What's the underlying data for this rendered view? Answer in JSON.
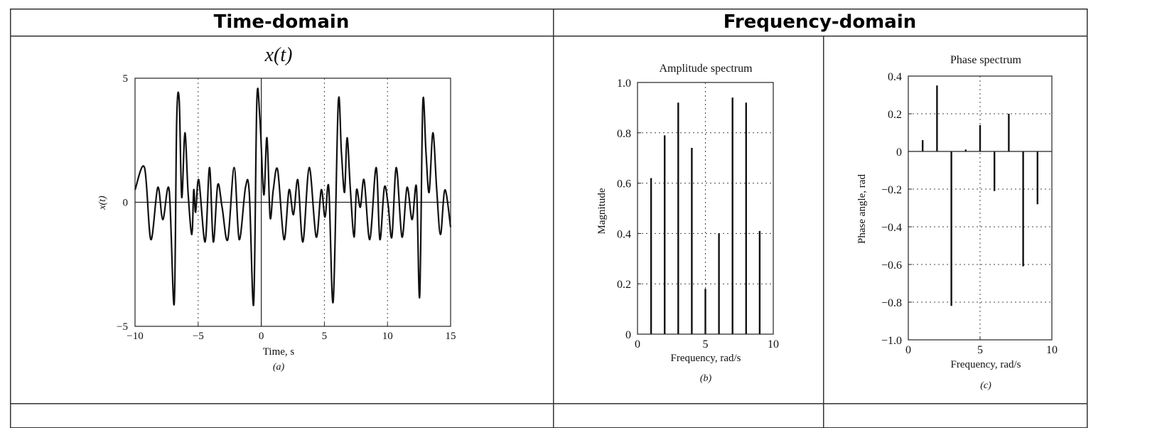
{
  "table": {
    "col_time_header": "Time-domain",
    "col_freq_header": "Frequency-domain"
  },
  "chart_data": [
    {
      "type": "line",
      "title": "x(t)",
      "xlabel": "Time, s",
      "ylabel": "x(t)",
      "caption": "(a)",
      "xlim": [
        -10,
        15
      ],
      "ylim": [
        -5,
        5
      ],
      "xticks": [
        -10,
        -5,
        0,
        5,
        10,
        15
      ],
      "xtick_labels": [
        "−10",
        "−5",
        "0",
        "5",
        "10",
        "15"
      ],
      "yticks": [
        -5,
        0,
        5
      ],
      "ytick_labels": [
        "−5",
        "0",
        "5"
      ],
      "grid": "dotted vertical lines at x = −5, 5, 10",
      "x": [
        -10,
        -9.25,
        -8.75,
        -8.2,
        -7.8,
        -7.3,
        -6.9,
        -6.7,
        -6.5,
        -6.3,
        -6.05,
        -5.8,
        -5.5,
        -5.35,
        -5.2,
        -4.95,
        -4.45,
        -4.1,
        -3.8,
        -3.45,
        -3.1,
        -2.65,
        -2.15,
        -1.75,
        -1.25,
        -0.95,
        -0.6,
        -0.35,
        -0.1,
        0.2,
        0.45,
        0.7,
        0.95,
        1.3,
        1.8,
        2.2,
        2.55,
        2.9,
        3.3,
        3.8,
        4.35,
        4.75,
        5.05,
        5.35,
        5.7,
        6.1,
        6.35,
        6.6,
        6.8,
        7.05,
        7.35,
        7.55,
        7.85,
        8.15,
        8.6,
        9.1,
        9.4,
        9.75,
        10.05,
        10.35,
        10.7,
        11.15,
        11.55,
        11.95,
        12.3,
        12.55,
        12.8,
        13.05,
        13.3,
        13.6,
        13.9,
        14.2,
        14.55,
        15
      ],
      "y": [
        0.5,
        1.4,
        -1.5,
        0.6,
        -0.7,
        0.5,
        -4.1,
        3.3,
        4.1,
        0.2,
        2.8,
        0.4,
        -1.3,
        0.5,
        -0.4,
        0.9,
        -1.6,
        1.4,
        -1.6,
        0.7,
        -0.2,
        -1.5,
        1.4,
        -1.5,
        0.6,
        0.4,
        -4.1,
        4.1,
        3.3,
        0.3,
        2.6,
        -0.6,
        0.5,
        1.3,
        -1.5,
        0.5,
        -0.5,
        0.9,
        -1.6,
        1.4,
        -1.4,
        0.5,
        -0.6,
        0.6,
        -4.0,
        4.0,
        2.0,
        0.4,
        2.6,
        0.6,
        -1.4,
        0.5,
        -0.2,
        0.9,
        -1.5,
        1.4,
        -1.5,
        0.6,
        -0.1,
        -1.4,
        1.4,
        -1.4,
        0.6,
        -0.7,
        0.6,
        -3.8,
        4.0,
        2.0,
        0.4,
        2.8,
        0.5,
        -1.3,
        0.5,
        -1.0
      ]
    },
    {
      "type": "bar",
      "title": "Amplitude spectrum",
      "xlabel": "Frequency, rad/s",
      "ylabel": "Magnitude",
      "caption": "(b)",
      "xlim": [
        0,
        10
      ],
      "ylim": [
        0,
        1.0
      ],
      "xticks": [
        0,
        5,
        10
      ],
      "yticks": [
        0,
        0.2,
        0.4,
        0.6,
        0.8,
        1.0
      ],
      "ytick_labels": [
        "0",
        "0.2",
        "0.4",
        "0.6",
        "0.8",
        "1.0"
      ],
      "grid": "dotted at x = 5 and y = 0.2, 0.4, 0.6, 0.8",
      "x": [
        1,
        2,
        3,
        4,
        5,
        6,
        7,
        8,
        9
      ],
      "values": [
        0.62,
        0.79,
        0.92,
        0.74,
        0.18,
        0.4,
        0.94,
        0.92,
        0.41
      ]
    },
    {
      "type": "bar",
      "title": "Phase spectrum",
      "xlabel": "Frequency, rad/s",
      "ylabel": "Phase angle, rad",
      "caption": "(c)",
      "xlim": [
        0,
        10
      ],
      "ylim": [
        -1.0,
        0.4
      ],
      "xticks": [
        0,
        5,
        10
      ],
      "yticks": [
        0.4,
        0.2,
        0,
        -0.2,
        -0.4,
        -0.6,
        -0.8,
        -1.0
      ],
      "ytick_labels": [
        "0.4",
        "0.2",
        "0",
        "−0.2",
        "−0.4",
        "−0.6",
        "−0.8",
        "−1.0"
      ],
      "grid": "dotted at x = 5 and y = 0.2, -0.2, -0.4, -0.6, -0.8",
      "x": [
        1,
        2,
        3,
        4,
        5,
        6,
        7,
        8,
        9
      ],
      "values": [
        0.06,
        0.35,
        -0.82,
        0.01,
        0.14,
        -0.21,
        0.2,
        -0.61,
        -0.28
      ]
    }
  ]
}
